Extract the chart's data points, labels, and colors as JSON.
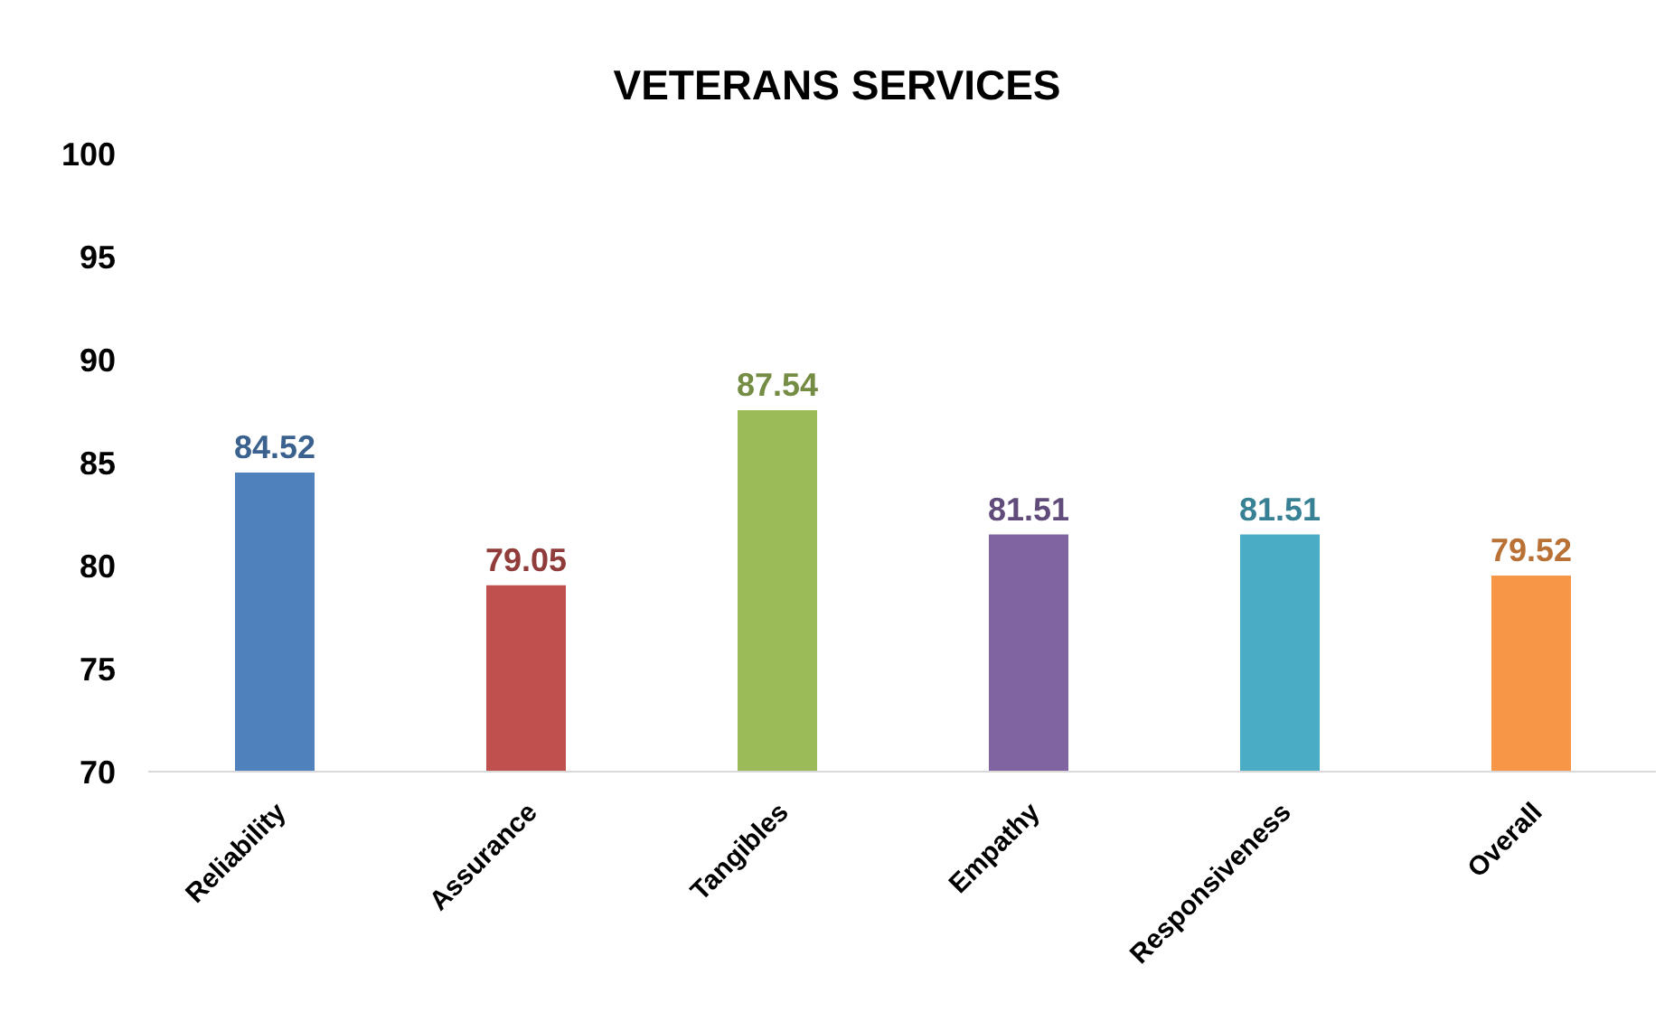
{
  "chart_data": {
    "type": "bar",
    "title": "VETERANS SERVICES",
    "categories": [
      "Reliability",
      "Assurance",
      "Tangibles",
      "Empathy",
      "Responsiveness",
      "Overall"
    ],
    "values": [
      84.52,
      79.05,
      87.54,
      81.51,
      81.51,
      79.52
    ],
    "colors": [
      "#4f81bd",
      "#c0504d",
      "#9bbb59",
      "#8064a2",
      "#4bacc6",
      "#f79646"
    ],
    "ylim": [
      70,
      100
    ],
    "yticks": [
      70,
      75,
      80,
      85,
      90,
      95,
      100
    ],
    "grid": false,
    "data_labels": true
  }
}
